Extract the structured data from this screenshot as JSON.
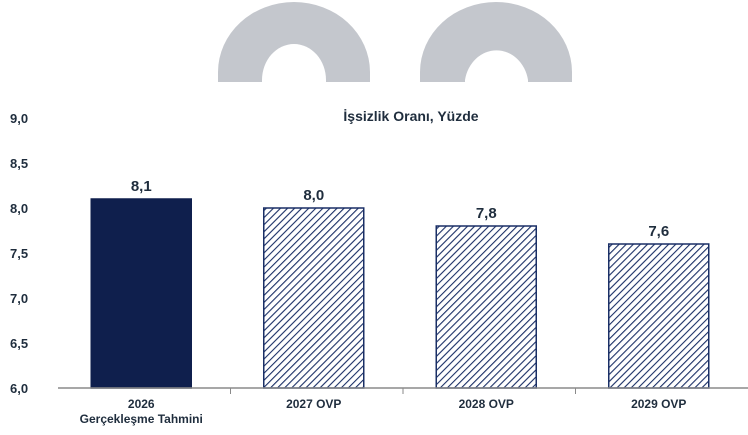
{
  "chart_data": {
    "type": "bar",
    "title": "İşsizlik Oranı, Yüzde",
    "categories": [
      [
        "2026",
        "Gerçekleşme Tahmini"
      ],
      [
        "2027 OVP"
      ],
      [
        "2028 OVP"
      ],
      [
        "2029 OVP"
      ]
    ],
    "values": [
      8.1,
      8.0,
      7.8,
      7.6
    ],
    "value_labels": [
      "8,1",
      "8,0",
      "7,8",
      "7,6"
    ],
    "ylim": [
      6.0,
      9.0
    ],
    "yticks": [
      6.0,
      6.5,
      7.0,
      7.5,
      8.0,
      8.5,
      9.0
    ],
    "ytick_labels": [
      "6,0",
      "6,5",
      "7,0",
      "7,5",
      "8,0",
      "8,5",
      "9,0"
    ],
    "grid": false,
    "legend": "none",
    "colors": {
      "solid_bar": "#0f1f4d",
      "hatch": "#1a2f66",
      "text": "#1f2d3d",
      "axis": "#8a8a8a",
      "watermark": "#c4c7cd"
    },
    "bar_styles": [
      "solid",
      "hatched",
      "hatched",
      "hatched"
    ]
  }
}
